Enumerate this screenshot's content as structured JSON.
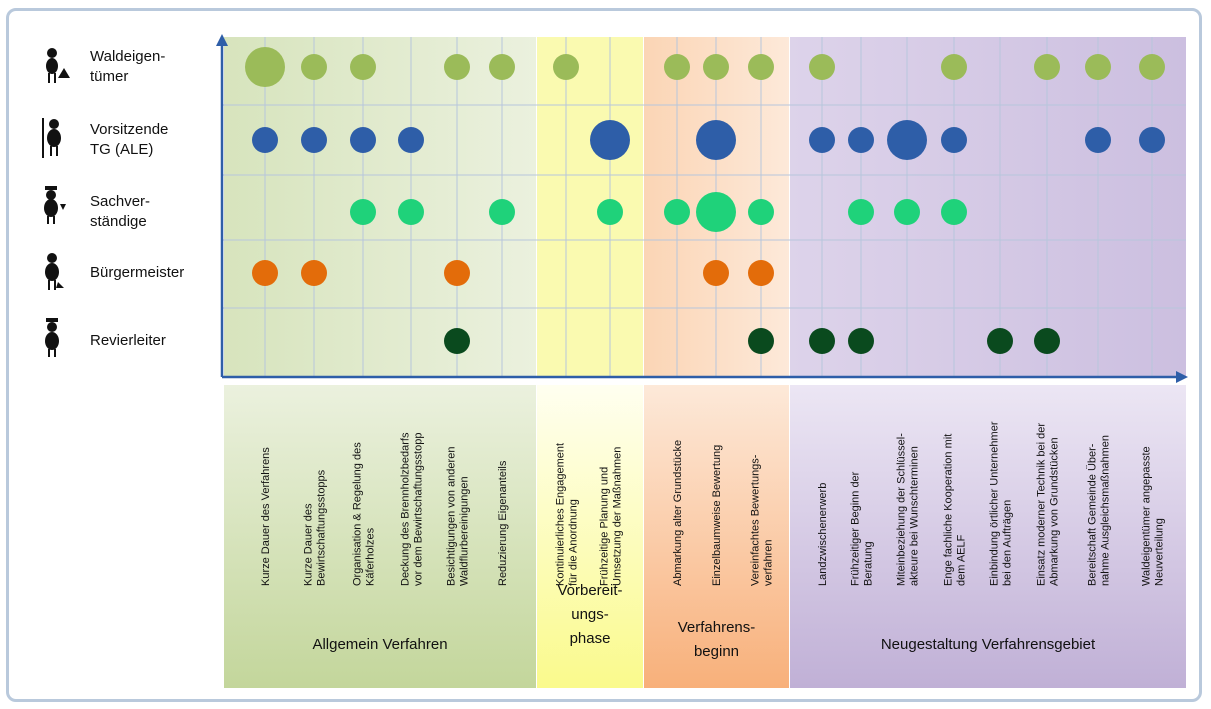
{
  "chart_data": {
    "type": "bubble-matrix",
    "categories": [
      [
        "Kurze Dauer des Verfahrens"
      ],
      [
        "Kurze Dauer des",
        "Bewirtschaftungsstopps"
      ],
      [
        "Organisation & Regelung des",
        "Käferholzes"
      ],
      [
        "Deckung des Brennholzbedarfs",
        "vor dem Bewirtschaftungsstopp"
      ],
      [
        "Besichtigungen von anderen",
        "Waldflurbereinigungen"
      ],
      [
        "Reduzierung  Eigenanteils"
      ],
      [
        "Kontinuierliches Engagement",
        "für die Anordnung"
      ],
      [
        "Frühzeitige Planung und",
        "Umsetzung der Maßnahmen"
      ],
      [
        "Abmarkung alter Grundstücke"
      ],
      [
        "Einzelbaumweise Bewertung"
      ],
      [
        "Vereinfachtes Bewertungs-",
        "verfahren"
      ],
      [
        "Landzwischenerwerb"
      ],
      [
        "Frühzeitiger Beginn der",
        "Beratung"
      ],
      [
        "Miteinbeziehung der Schlüssel-",
        "akteure bei Wunschterminen"
      ],
      [
        "Enge fachliche Kooperation mit",
        "dem AELF"
      ],
      [
        "Einbindung örtlicher Unternehmer",
        "bei den Aufträgen"
      ],
      [
        "Einsatz moderner Technik bei der",
        "Abmarkung von Grundstücken"
      ],
      [
        "Bereitschaft Gemeinde Über-",
        "nahme Ausgleichsmaßnahmen"
      ],
      [
        "Waldeigentümer angepasste",
        "Neuverteilung"
      ]
    ],
    "groups": [
      [
        "Allgemein Verfahren"
      ],
      [
        "Vorbereit-",
        "ungs-",
        "phase"
      ],
      [
        "Verfahrens-",
        "beginn"
      ],
      [
        "Neugestaltung Verfahrensgebiet"
      ]
    ],
    "series": [
      {
        "name": [
          "Waldeigen-",
          "tümer"
        ],
        "color": "#9bbb59",
        "values": [
          2,
          1,
          1,
          null,
          1,
          1,
          1,
          null,
          1,
          1,
          1,
          1,
          null,
          null,
          1,
          null,
          1,
          1,
          1
        ]
      },
      {
        "name": [
          "Vorsitzende",
          "TG (ALE)"
        ],
        "color": "#2e5ea8",
        "values": [
          1,
          1,
          1,
          1,
          null,
          null,
          null,
          2,
          null,
          2,
          null,
          1,
          1,
          2,
          1,
          null,
          null,
          1,
          1
        ]
      },
      {
        "name": [
          "Sachver-",
          "ständige"
        ],
        "color": "#1fd27a",
        "values": [
          null,
          null,
          1,
          1,
          null,
          1,
          null,
          1,
          1,
          2,
          1,
          null,
          1,
          1,
          1,
          null,
          null,
          null,
          null
        ]
      },
      {
        "name": [
          "Bürgermeister"
        ],
        "color": "#e36c0a",
        "values": [
          1,
          1,
          null,
          null,
          1,
          null,
          null,
          null,
          null,
          1,
          1,
          null,
          null,
          null,
          null,
          null,
          null,
          null,
          null
        ]
      },
      {
        "name": [
          "Revierleiter"
        ],
        "color": "#0a4a1e",
        "values": [
          null,
          null,
          null,
          null,
          1,
          null,
          null,
          null,
          null,
          null,
          1,
          1,
          1,
          null,
          null,
          1,
          1,
          null,
          null
        ]
      }
    ]
  }
}
